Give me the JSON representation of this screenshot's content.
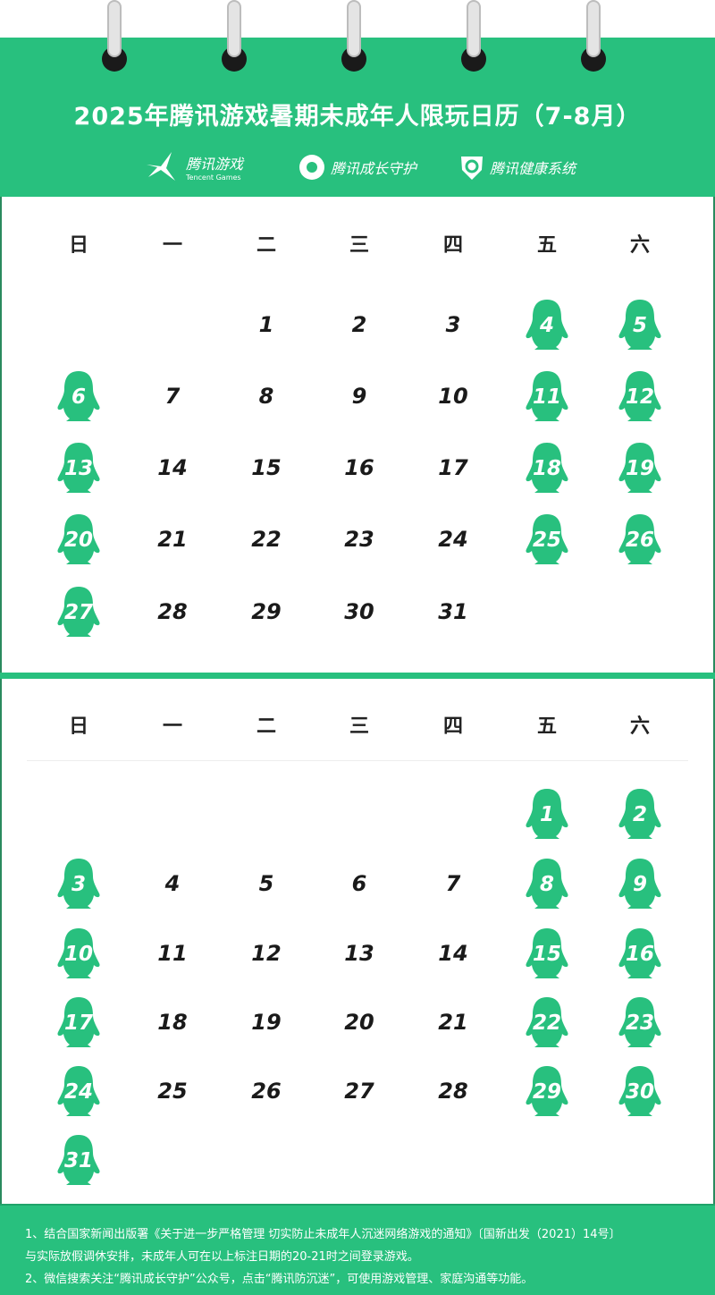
{
  "title": "2025年腾讯游戏暑期未成年人限玩日历（7-8月）",
  "logos": [
    {
      "name": "腾讯游戏",
      "sub": "Tencent Games",
      "icon": "tencent-games-icon"
    },
    {
      "name": "腾讯成长守护",
      "icon": "growth-guard-icon"
    },
    {
      "name": "腾讯健康系统",
      "icon": "health-system-icon"
    }
  ],
  "weekdays": [
    "日",
    "一",
    "二",
    "三",
    "四",
    "五",
    "六"
  ],
  "accent_color": "#28c07e",
  "calendars": [
    {
      "month": 7,
      "start_weekday": 2,
      "days_in_month": 31,
      "allowed_days": [
        4,
        5,
        6,
        11,
        12,
        13,
        18,
        19,
        20,
        25,
        26,
        27
      ]
    },
    {
      "month": 8,
      "start_weekday": 5,
      "days_in_month": 31,
      "allowed_days": [
        1,
        2,
        3,
        8,
        9,
        10,
        15,
        16,
        17,
        22,
        23,
        24,
        29,
        30,
        31
      ]
    }
  ],
  "footer": {
    "line1": "1、结合国家新闻出版署《关于进一步严格管理 切实防止未成年人沉迷网络游戏的通知》〔国新出发（2021）14号〕",
    "line2": "与实际放假调休安排，未成年人可在以上标注日期的20-21时之间登录游戏。",
    "line3": "2、微信搜索关注“腾讯成长守护”公众号，点击“腾讯防沉迷”，可使用游戏管理、家庭沟通等功能。"
  }
}
